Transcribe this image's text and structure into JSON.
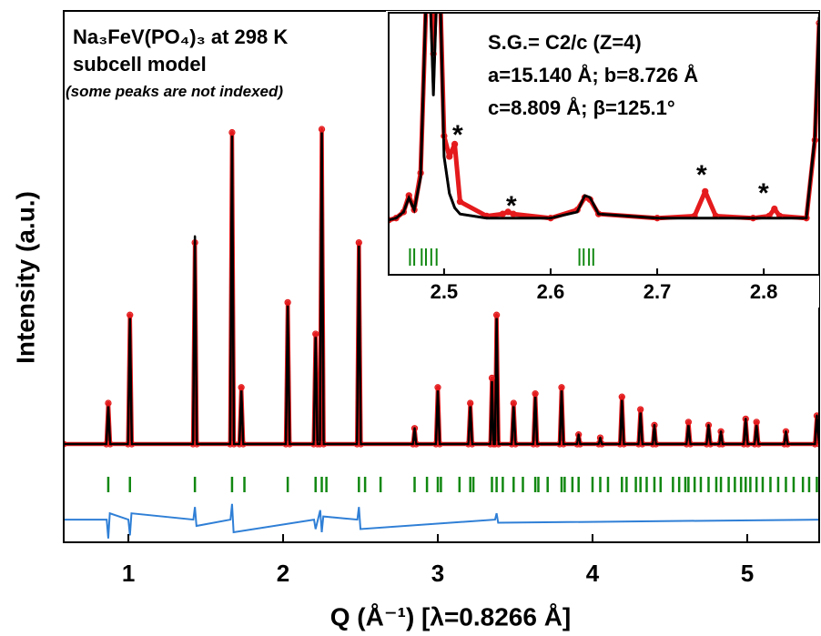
{
  "chart_data": [
    {
      "type": "rietveld",
      "xlabel": "Q (Å⁻¹) [λ=0.8266 Å]",
      "ylabel": "Intensity (a.u.)",
      "annotations": [
        "Na₃FeV(PO₄)₃ at 298 K",
        "subcell model",
        "(some peaks are not indexed)"
      ],
      "xlim": [
        0.582,
        5.465
      ],
      "xticks": [
        1,
        2,
        3,
        4,
        5
      ],
      "ylim": [
        -31.2,
        137.6
      ],
      "x": [
        0.582,
        0.858,
        0.87,
        0.882,
        0.998,
        1.01,
        1.022,
        1.418,
        1.43,
        1.442,
        1.658,
        1.67,
        1.682,
        1.718,
        1.73,
        1.742,
        2.018,
        2.03,
        2.042,
        2.198,
        2.21,
        2.222,
        2.238,
        2.25,
        2.262,
        2.478,
        2.49,
        2.502,
        2.84,
        2.85,
        2.86,
        2.988,
        3.0,
        3.012,
        3.198,
        3.21,
        3.222,
        3.34,
        3.35,
        3.36,
        3.37,
        3.38,
        3.392,
        3.478,
        3.49,
        3.502,
        3.618,
        3.63,
        3.642,
        3.788,
        3.8,
        3.812,
        3.9,
        3.91,
        3.92,
        4.04,
        4.05,
        4.06,
        4.178,
        4.19,
        4.202,
        4.298,
        4.31,
        4.322,
        4.39,
        4.4,
        4.41,
        4.608,
        4.62,
        4.632,
        4.738,
        4.75,
        4.762,
        4.82,
        4.83,
        4.84,
        4.978,
        4.99,
        5.002,
        5.048,
        5.06,
        5.072,
        5.24,
        5.25,
        5.26,
        5.438,
        5.45,
        5.465
      ],
      "series": [
        {
          "color": "#e41a1c",
          "marker": "circle",
          "values": [
            0,
            0,
            13,
            0,
            0,
            41,
            0,
            0,
            64,
            0,
            0,
            99,
            0,
            0,
            18,
            0,
            0,
            45,
            0,
            0,
            35,
            0,
            0,
            100,
            0,
            0,
            64,
            0,
            0,
            5,
            0,
            0,
            18,
            0,
            0,
            13,
            0,
            0,
            21,
            0,
            0,
            41,
            0,
            0,
            13,
            0,
            0,
            16,
            0,
            0,
            18,
            0,
            0,
            3,
            0,
            0,
            2,
            0,
            0,
            15,
            0,
            0,
            11,
            0,
            0,
            6,
            0,
            0,
            7,
            0,
            0,
            6,
            0,
            0,
            4,
            0,
            0,
            8,
            0,
            0,
            7,
            0,
            0,
            4,
            0,
            0,
            9,
            0
          ]
        },
        {
          "color": "#000000",
          "values": [
            0,
            0,
            12,
            0,
            0,
            40,
            0,
            0,
            66,
            0,
            0,
            98,
            0,
            0,
            17,
            0,
            0,
            44,
            0,
            0,
            34,
            0,
            0,
            99,
            0,
            0,
            63,
            0,
            0,
            5,
            0,
            0,
            17,
            0,
            0,
            12,
            0,
            0,
            20,
            0,
            0,
            40,
            0,
            0,
            12,
            0,
            0,
            15,
            0,
            0,
            17,
            0,
            0,
            3,
            0,
            0,
            2,
            0,
            0,
            14,
            0,
            0,
            10,
            0,
            0,
            6,
            0,
            0,
            6,
            0,
            0,
            6,
            0,
            0,
            4,
            0,
            0,
            8,
            0,
            0,
            6,
            0,
            0,
            4,
            0,
            0,
            9,
            0
          ]
        }
      ],
      "difference": {
        "color": "#2f7fd6",
        "x": [
          0.582,
          0.86,
          0.87,
          0.88,
          1.0,
          1.01,
          1.02,
          1.42,
          1.43,
          1.44,
          1.66,
          1.67,
          1.68,
          2.2,
          2.21,
          2.24,
          2.25,
          2.26,
          2.48,
          2.49,
          2.5,
          3.37,
          3.38,
          3.39,
          5.465
        ],
        "values": [
          -24,
          -24,
          -30,
          -22,
          -24,
          -29,
          -22,
          -24,
          -20,
          -26,
          -24,
          -19,
          -28,
          -24,
          -27,
          -21,
          -28,
          -23,
          -24,
          -20,
          -27,
          -24,
          -22,
          -25,
          -24
        ]
      },
      "reflections": {
        "color": "#118811",
        "x": [
          0.87,
          1.01,
          1.43,
          1.67,
          1.75,
          2.03,
          2.21,
          2.25,
          2.28,
          2.49,
          2.53,
          2.63,
          2.85,
          2.93,
          3.0,
          3.02,
          3.14,
          3.21,
          3.23,
          3.35,
          3.38,
          3.42,
          3.49,
          3.55,
          3.63,
          3.65,
          3.71,
          3.8,
          3.82,
          3.87,
          3.91,
          4.0,
          4.05,
          4.1,
          4.19,
          4.22,
          4.28,
          4.31,
          4.35,
          4.4,
          4.44,
          4.52,
          4.56,
          4.6,
          4.62,
          4.66,
          4.7,
          4.75,
          4.8,
          4.83,
          4.88,
          4.92,
          4.96,
          4.99,
          5.02,
          5.06,
          5.1,
          5.15,
          5.2,
          5.25,
          5.3,
          5.36,
          5.4,
          5.45
        ]
      }
    },
    {
      "type": "rietveld",
      "annotations": [
        "S.G.= C2/c (Z=4)",
        "a=15.140 Å; b=8.726 Å",
        "c=8.809 Å; β=125.1°",
        "*",
        "*",
        "*",
        "*"
      ],
      "xlim": [
        2.448,
        2.852
      ],
      "xticks": [
        2.5,
        2.6,
        2.7,
        2.8
      ],
      "ylim": [
        -27.6,
        100
      ],
      "x": [
        2.448,
        2.455,
        2.462,
        2.467,
        2.472,
        2.478,
        2.485,
        2.49,
        2.495,
        2.5,
        2.505,
        2.51,
        2.515,
        2.54,
        2.555,
        2.56,
        2.565,
        2.6,
        2.625,
        2.632,
        2.637,
        2.645,
        2.7,
        2.735,
        2.745,
        2.755,
        2.79,
        2.805,
        2.81,
        2.815,
        2.84,
        2.848,
        2.852
      ],
      "series": [
        {
          "color": "#e41a1c",
          "marker": "circle",
          "values": [
            -1,
            0,
            3,
            11,
            4,
            22,
            135,
            80,
            135,
            40,
            30,
            36,
            8,
            1,
            2,
            3,
            2,
            0,
            4,
            10,
            9,
            2,
            0,
            1,
            13,
            1,
            0,
            1,
            4.5,
            1,
            0,
            38,
            95
          ]
        },
        {
          "color": "#000000",
          "values": [
            -1,
            0,
            3,
            10,
            4,
            20,
            140,
            60,
            140,
            30,
            12,
            5,
            2,
            0,
            0,
            0,
            0,
            0,
            3,
            11,
            10,
            2,
            0,
            0,
            0,
            0,
            0,
            0,
            0,
            0,
            0,
            40,
            98
          ]
        }
      ],
      "reflections": {
        "color": "#118811",
        "x": [
          2.468,
          2.472,
          2.479,
          2.483,
          2.488,
          2.493,
          2.627,
          2.631,
          2.636,
          2.64,
          2.853,
          2.857
        ]
      }
    }
  ]
}
